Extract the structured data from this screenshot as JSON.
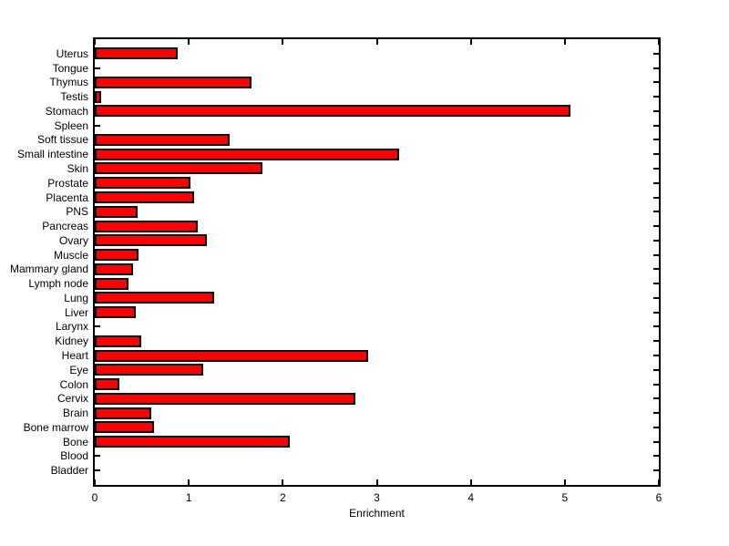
{
  "figure": {
    "background": "#ffffff"
  },
  "chart_data": {
    "type": "bar",
    "orientation": "horizontal",
    "title": "",
    "xlabel": "Enrichment",
    "ylabel": "",
    "xlim": [
      0,
      6
    ],
    "xticks": [
      "0",
      "1",
      "2",
      "3",
      "4",
      "5",
      "6"
    ],
    "grid": false,
    "legend": null,
    "bar_color": "#ff0000",
    "bar_edge_color": "#000000",
    "axis_color": "#000000",
    "categories": [
      "Uterus",
      "Tongue",
      "Thymus",
      "Testis",
      "Stomach",
      "Spleen",
      "Soft tissue",
      "Small intestine",
      "Skin",
      "Prostate",
      "Placenta",
      "PNS",
      "Pancreas",
      "Ovary",
      "Muscle",
      "Mammary gland",
      "Lymph node",
      "Lung",
      "Liver",
      "Larynx",
      "Kidney",
      "Heart",
      "Eye",
      "Colon",
      "Cervix",
      "Brain",
      "Bone marrow",
      "Bone",
      "Blood",
      "Bladder"
    ],
    "values": [
      0.88,
      0,
      1.67,
      0.07,
      5.06,
      0,
      1.43,
      3.24,
      1.78,
      1.02,
      1.06,
      0.46,
      1.1,
      1.19,
      0.47,
      0.41,
      0.36,
      1.27,
      0.44,
      0,
      0.49,
      2.91,
      1.15,
      0.26,
      2.77,
      0.6,
      0.63,
      2.07,
      0,
      0
    ]
  }
}
